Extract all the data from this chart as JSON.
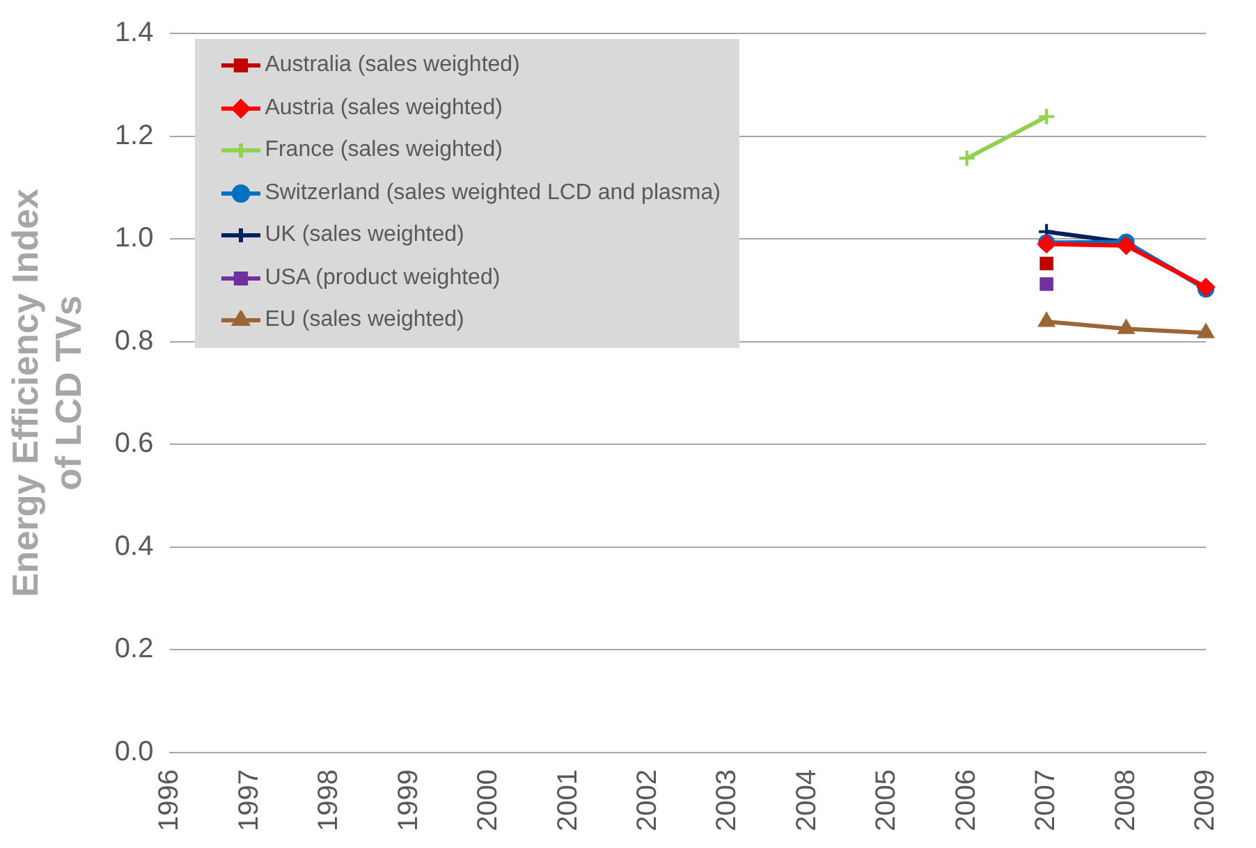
{
  "chart_data": {
    "type": "line",
    "ylabel": "Energy Efficiency Index of LCD TVs",
    "categories": [
      "1996",
      "1997",
      "1998",
      "1999",
      "2000",
      "2001",
      "2002",
      "2003",
      "2004",
      "2005",
      "2006",
      "2007",
      "2008",
      "2009"
    ],
    "ylim": [
      0,
      1.4
    ],
    "yticks": [
      {
        "value": 0,
        "label": "0.0"
      },
      0.2,
      0.4,
      0.6,
      0.8,
      {
        "value": 1,
        "label": "1.0"
      },
      1.2,
      1.4
    ],
    "grid": "y",
    "legend": "top left",
    "line_style": "solid",
    "series": [
      {
        "name": "Australia (sales weighted)",
        "color": "#c00000",
        "marker": "square",
        "values": [
          null,
          null,
          null,
          null,
          null,
          null,
          null,
          null,
          null,
          null,
          null,
          0.952,
          null,
          null
        ]
      },
      {
        "name": "Austria (sales weighted)",
        "color": "#ff0000",
        "marker": "diamond",
        "values": [
          null,
          null,
          null,
          null,
          null,
          null,
          null,
          null,
          null,
          null,
          null,
          0.99,
          0.987,
          0.906
        ]
      },
      {
        "name": "France (sales weighted)",
        "color": "#92d050",
        "marker": "cross",
        "values": [
          null,
          null,
          null,
          null,
          null,
          null,
          null,
          null,
          null,
          null,
          1.157,
          1.238,
          null,
          null
        ]
      },
      {
        "name": "Switzerland (sales weighted LCD and plasma)",
        "color": "#0070c0",
        "marker": "circle",
        "values": [
          null,
          null,
          null,
          null,
          null,
          null,
          null,
          null,
          null,
          null,
          null,
          0.993,
          0.994,
          0.902
        ]
      },
      {
        "name": "UK (sales weighted)",
        "color": "#002060",
        "marker": "cross",
        "values": [
          null,
          null,
          null,
          null,
          null,
          null,
          null,
          null,
          null,
          null,
          null,
          1.014,
          0.993,
          0.904
        ]
      },
      {
        "name": "USA (product weighted)",
        "color": "#7030a0",
        "marker": "square",
        "values": [
          null,
          null,
          null,
          null,
          null,
          null,
          null,
          null,
          null,
          null,
          null,
          0.912,
          null,
          null
        ]
      },
      {
        "name": "EU (sales weighted)",
        "color": "#9c6535",
        "marker": "triangle",
        "values": [
          null,
          null,
          null,
          null,
          null,
          null,
          null,
          null,
          null,
          null,
          null,
          0.839,
          0.825,
          0.817
        ]
      }
    ]
  }
}
